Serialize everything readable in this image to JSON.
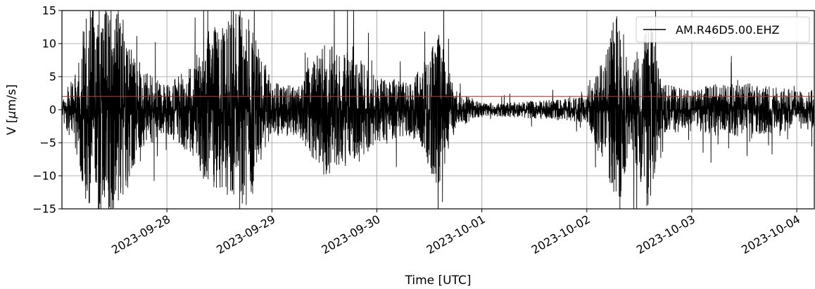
{
  "chart_data": {
    "type": "line",
    "xlabel": "Time [UTC]",
    "ylabel_parts": {
      "prefix": "V [",
      "mu": "μ",
      "suffix": "m/s]"
    },
    "x_ticks": [
      "2023-09-28",
      "2023-09-29",
      "2023-09-30",
      "2023-10-01",
      "2023-10-02",
      "2023-10-03",
      "2023-10-04"
    ],
    "y_ticks": [
      15,
      10,
      5,
      0,
      -5,
      -10,
      -15
    ],
    "y_tick_labels": [
      "15",
      "10",
      "5",
      "0",
      "−5",
      "−10",
      "−15"
    ],
    "xlim": [
      "2023-09-27 00:00",
      "2023-10-04 04:00"
    ],
    "ylim": [
      -15,
      15
    ],
    "grid": true,
    "legend_position": "top-right",
    "series": [
      {
        "name": "AM.R46D5.00.EHZ",
        "color": "#000000",
        "kind": "velocity trace (envelope, µm/s)",
        "envelope": [
          {
            "t": "2023-09-27 00:00",
            "amp": 1.5
          },
          {
            "t": "2023-09-27 03:00",
            "amp": 6
          },
          {
            "t": "2023-09-27 06:00",
            "amp": 16
          },
          {
            "t": "2023-09-27 12:00",
            "amp": 16
          },
          {
            "t": "2023-09-27 14:00",
            "amp": 14
          },
          {
            "t": "2023-09-27 18:00",
            "amp": 6
          },
          {
            "t": "2023-09-28 00:00",
            "amp": 4
          },
          {
            "t": "2023-09-28 06:00",
            "amp": 7
          },
          {
            "t": "2023-09-28 09:00",
            "amp": 12
          },
          {
            "t": "2023-09-28 15:00",
            "amp": 14
          },
          {
            "t": "2023-09-28 18:00",
            "amp": 16
          },
          {
            "t": "2023-09-29 00:00",
            "amp": 4
          },
          {
            "t": "2023-09-29 06:00",
            "amp": 4
          },
          {
            "t": "2023-09-29 12:00",
            "amp": 10
          },
          {
            "t": "2023-09-29 20:00",
            "amp": 8
          },
          {
            "t": "2023-09-30 00:00",
            "amp": 5
          },
          {
            "t": "2023-09-30 08:00",
            "amp": 4
          },
          {
            "t": "2023-09-30 14:00",
            "amp": 12
          },
          {
            "t": "2023-09-30 18:00",
            "amp": 3
          },
          {
            "t": "2023-10-01 00:00",
            "amp": 1
          },
          {
            "t": "2023-10-01 08:00",
            "amp": 1.2
          },
          {
            "t": "2023-10-01 16:00",
            "amp": 1.5
          },
          {
            "t": "2023-10-02 00:00",
            "amp": 2
          },
          {
            "t": "2023-10-02 04:00",
            "amp": 8
          },
          {
            "t": "2023-10-02 07:00",
            "amp": 16
          },
          {
            "t": "2023-10-02 10:00",
            "amp": 5
          },
          {
            "t": "2023-10-02 14:00",
            "amp": 16
          },
          {
            "t": "2023-10-02 17:00",
            "amp": 4
          },
          {
            "t": "2023-10-03 00:00",
            "amp": 3
          },
          {
            "t": "2023-10-03 06:00",
            "amp": 4
          },
          {
            "t": "2023-10-03 14:00",
            "amp": 4
          },
          {
            "t": "2023-10-04 00:00",
            "amp": 3
          },
          {
            "t": "2023-10-04 04:00",
            "amp": 3
          }
        ]
      },
      {
        "name": "",
        "color": "#d62728",
        "kind": "horizontal reference line",
        "y": 2
      }
    ]
  }
}
